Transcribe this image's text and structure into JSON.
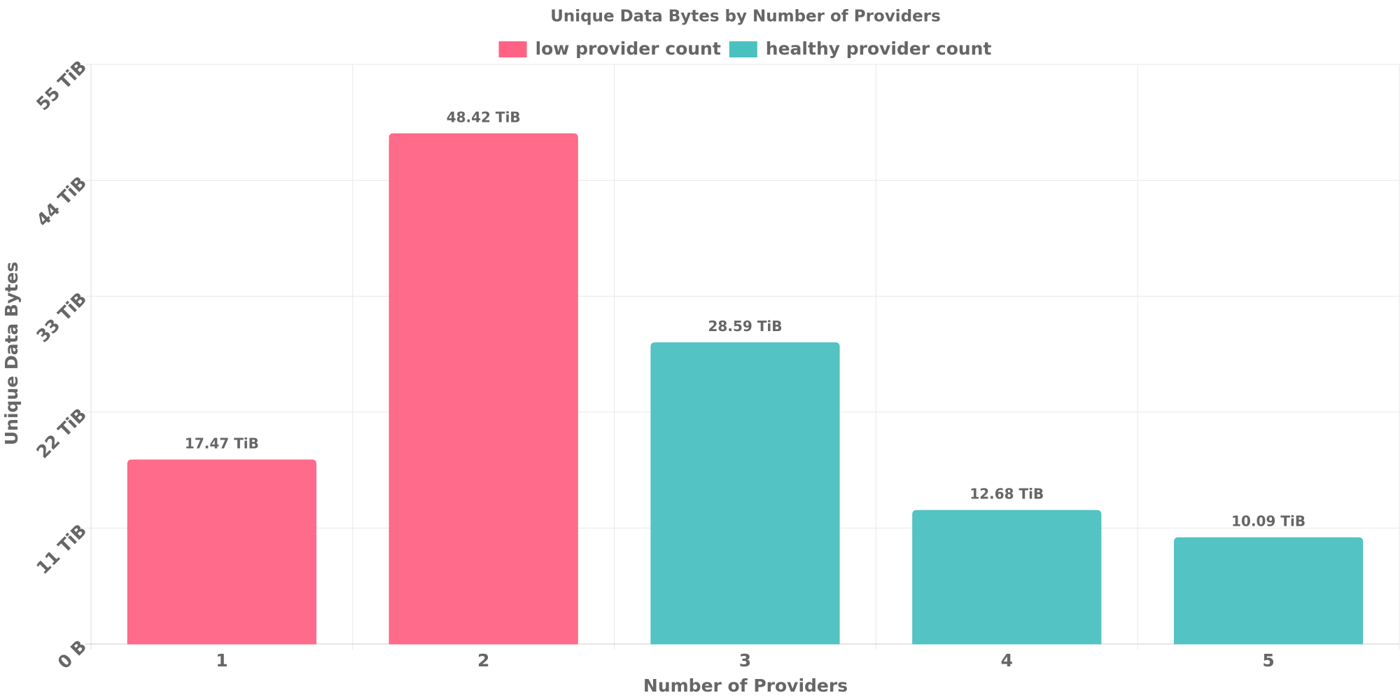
{
  "chart_data": {
    "type": "bar",
    "title": "Unique Data Bytes by Number of Providers",
    "x_label": "Number of Providers",
    "y_label": "Unique Data Bytes",
    "categories": [
      "1",
      "2",
      "3",
      "4",
      "5"
    ],
    "series": [
      {
        "name": "low provider count",
        "color": "#ff6384",
        "values": [
          17.47,
          48.42,
          null,
          null,
          null
        ],
        "value_labels": [
          "17.47 TiB",
          "48.42 TiB",
          null,
          null,
          null
        ]
      },
      {
        "name": "healthy provider count",
        "color": "#4bc0c0",
        "values": [
          null,
          null,
          28.59,
          12.68,
          10.09
        ],
        "value_labels": [
          null,
          null,
          "28.59 TiB",
          "12.68 TiB",
          "10.09 TiB"
        ]
      }
    ],
    "ylim": [
      0,
      55
    ],
    "yticks": [
      {
        "value": 0,
        "label": "0 B"
      },
      {
        "value": 11,
        "label": "11 TiB"
      },
      {
        "value": 22,
        "label": "22 TiB"
      },
      {
        "value": 33,
        "label": "33 TiB"
      },
      {
        "value": 44,
        "label": "44 TiB"
      },
      {
        "value": 55,
        "label": "55 TiB"
      }
    ],
    "grid": true,
    "legend": "top"
  }
}
